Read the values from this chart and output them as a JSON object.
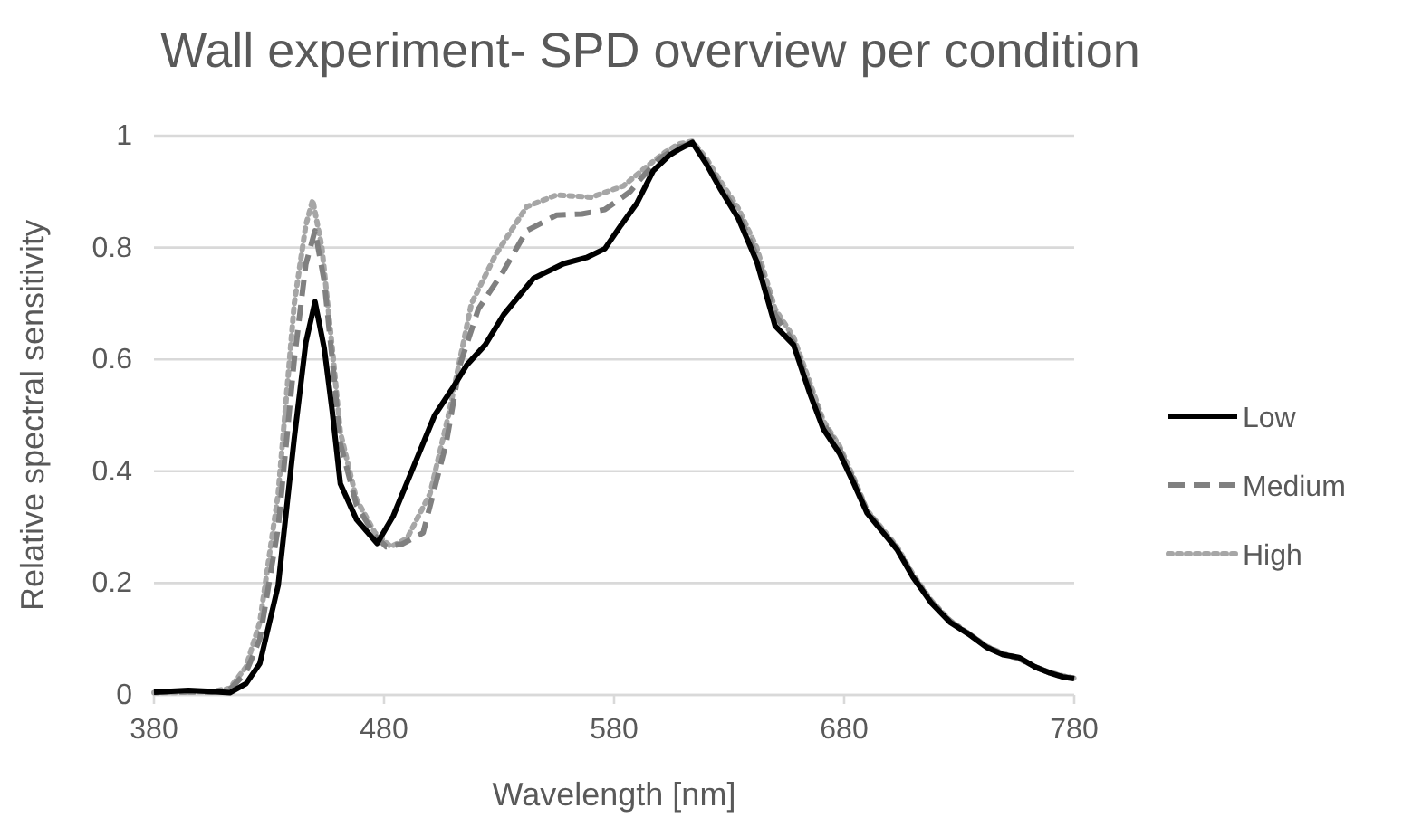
{
  "chart_data": {
    "type": "line",
    "title": "Wall experiment- SPD overview per condition",
    "xlabel": "Wavelength [nm]",
    "ylabel": "Relative spectral sensitivity",
    "xlim": [
      380,
      780
    ],
    "xticks": [
      380,
      480,
      580,
      680,
      780
    ],
    "ylim": [
      0,
      1
    ],
    "yticks": [
      0,
      0.2,
      0.4,
      0.6,
      0.8,
      1
    ],
    "grid": "y",
    "legend": "right",
    "series": [
      {
        "name": "Low",
        "color": "#000000",
        "line_style": "solid",
        "x": [
          380,
          395,
          405,
          413,
          420,
          426,
          434,
          441,
          446,
          450,
          454,
          457.5,
          461,
          468,
          477,
          484,
          492,
          502,
          510,
          516,
          524,
          532,
          545,
          558,
          568,
          576,
          583,
          590,
          597,
          604,
          608,
          614,
          620,
          626,
          634,
          642,
          650,
          658,
          665,
          671,
          678,
          684,
          690,
          696,
          703,
          710,
          718,
          726,
          734,
          742,
          749,
          756,
          763,
          769,
          775,
          780
        ],
        "values": [
          0.005,
          0.008,
          0.006,
          0.004,
          0.02,
          0.056,
          0.196,
          0.46,
          0.63,
          0.703,
          0.62,
          0.507,
          0.378,
          0.314,
          0.271,
          0.32,
          0.4,
          0.5,
          0.55,
          0.59,
          0.626,
          0.68,
          0.745,
          0.771,
          0.782,
          0.798,
          0.84,
          0.88,
          0.937,
          0.965,
          0.975,
          0.988,
          0.95,
          0.906,
          0.852,
          0.775,
          0.66,
          0.626,
          0.54,
          0.475,
          0.432,
          0.38,
          0.325,
          0.295,
          0.26,
          0.21,
          0.164,
          0.13,
          0.109,
          0.085,
          0.072,
          0.067,
          0.05,
          0.04,
          0.032,
          0.029
        ]
      },
      {
        "name": "Medium",
        "color": "#808080",
        "line_style": "dashed",
        "x": [
          380,
          395,
          405,
          413,
          420,
          426,
          434,
          441,
          446,
          450,
          454,
          457.5,
          461,
          468,
          476,
          481,
          488,
          497,
          507,
          513,
          521,
          531.5,
          542,
          555,
          566,
          576,
          581.6,
          587,
          592,
          600,
          608,
          614,
          620,
          626,
          634,
          642,
          650,
          658,
          665,
          671,
          678,
          684,
          690,
          696,
          703,
          710,
          718,
          726,
          734,
          742,
          749,
          756,
          763,
          769,
          775,
          780
        ],
        "values": [
          0.005,
          0.006,
          0.005,
          0.01,
          0.04,
          0.1,
          0.3,
          0.6,
          0.77,
          0.83,
          0.74,
          0.6,
          0.45,
          0.34,
          0.285,
          0.265,
          0.27,
          0.29,
          0.45,
          0.59,
          0.69,
          0.755,
          0.83,
          0.858,
          0.86,
          0.868,
          0.884,
          0.9,
          0.925,
          0.96,
          0.98,
          0.985,
          0.955,
          0.91,
          0.86,
          0.785,
          0.68,
          0.63,
          0.55,
          0.485,
          0.44,
          0.385,
          0.328,
          0.297,
          0.262,
          0.212,
          0.166,
          0.132,
          0.11,
          0.086,
          0.073,
          0.065,
          0.05,
          0.04,
          0.033,
          0.03
        ]
      },
      {
        "name": "High",
        "color": "#a6a6a6",
        "line_style": "dotted",
        "x": [
          380,
          395,
          405,
          413,
          420,
          426,
          434,
          441,
          446,
          449,
          453,
          457.5,
          461,
          468,
          476,
          483,
          490,
          500,
          508,
          518,
          528.5,
          542,
          555,
          570,
          584,
          594.5,
          602,
          608,
          614,
          620,
          626,
          634,
          642,
          650,
          658,
          665,
          671,
          678,
          684,
          690,
          696,
          703,
          710,
          718,
          726,
          734,
          742,
          749,
          756,
          763,
          769,
          775,
          780
        ],
        "values": [
          0.004,
          0.005,
          0.006,
          0.012,
          0.05,
          0.13,
          0.36,
          0.7,
          0.84,
          0.885,
          0.8,
          0.62,
          0.47,
          0.35,
          0.29,
          0.265,
          0.28,
          0.36,
          0.5,
          0.7,
          0.787,
          0.873,
          0.894,
          0.89,
          0.91,
          0.946,
          0.97,
          0.985,
          0.99,
          0.96,
          0.92,
          0.87,
          0.8,
          0.69,
          0.64,
          0.56,
          0.49,
          0.445,
          0.39,
          0.33,
          0.3,
          0.265,
          0.215,
          0.168,
          0.133,
          0.11,
          0.087,
          0.074,
          0.066,
          0.05,
          0.041,
          0.034,
          0.03
        ]
      }
    ]
  }
}
